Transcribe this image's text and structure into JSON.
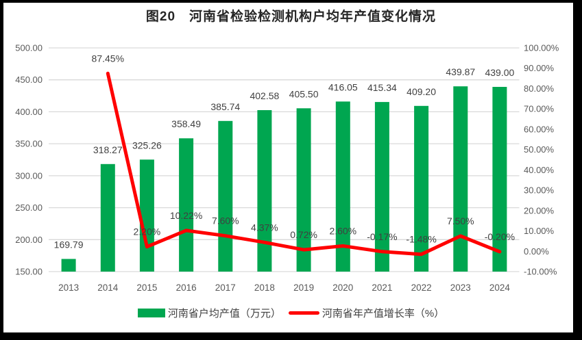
{
  "title": "图20　河南省检验检测机构户均年产值变化情况",
  "chart_data": {
    "type": "combo-bar-line",
    "categories": [
      "2013",
      "2014",
      "2015",
      "2016",
      "2017",
      "2018",
      "2019",
      "2020",
      "2021",
      "2022",
      "2023",
      "2024"
    ],
    "series": [
      {
        "name": "河南省户均产值（万元）",
        "type": "bar",
        "axis": "left",
        "color": "#00A650",
        "values": [
          169.79,
          318.27,
          325.26,
          358.49,
          385.74,
          402.58,
          405.5,
          416.05,
          415.34,
          409.2,
          439.87,
          439.0
        ],
        "data_labels": [
          "169.79",
          "318.27",
          "325.26",
          "358.49",
          "385.74",
          "402.58",
          "405.50",
          "416.05",
          "415.34",
          "409.20",
          "439.87",
          "439.00"
        ]
      },
      {
        "name": "河南省年产值增长率（%）",
        "type": "line",
        "axis": "right",
        "color": "#FF0000",
        "values": [
          null,
          87.45,
          2.2,
          10.22,
          7.6,
          4.37,
          0.72,
          2.6,
          -0.17,
          -1.48,
          7.5,
          -0.2
        ],
        "data_labels": [
          null,
          "87.45%",
          "2.20%",
          "10.22%",
          "7.60%",
          "4.37%",
          "0.72%",
          "2.60%",
          "-0.17%",
          "-1.48%",
          "7.50%",
          "-0.20%"
        ]
      }
    ],
    "left_axis": {
      "min": 150,
      "max": 500,
      "step": 50,
      "tick_labels": [
        "500.00",
        "450.00",
        "400.00",
        "350.00",
        "300.00",
        "250.00",
        "200.00",
        "150.00"
      ]
    },
    "right_axis": {
      "min": -10,
      "max": 100,
      "step": 10,
      "tick_labels": [
        "100.00%",
        "90.00%",
        "80.00%",
        "70.00%",
        "60.00%",
        "50.00%",
        "40.00%",
        "30.00%",
        "20.00%",
        "10.00%",
        "0.00%",
        "-10.00%"
      ]
    },
    "grid": true,
    "legend_position": "bottom",
    "colors": {
      "grid": "#D9D9D9",
      "axis_text": "#595959",
      "data_label_text": "#404040",
      "title_text": "#262626",
      "legend_text": "#404040",
      "background": "#FFFFFF",
      "frame": "#000000"
    }
  }
}
